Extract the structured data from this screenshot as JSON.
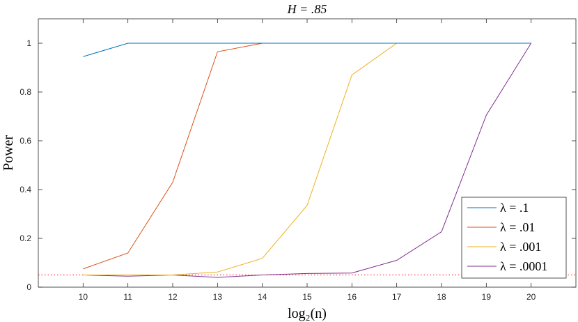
{
  "chart_data": {
    "type": "line",
    "title": "H = .85",
    "xlabel": "log₂(n)",
    "ylabel": "Power",
    "x": [
      10,
      11,
      12,
      13,
      14,
      15,
      16,
      17,
      18,
      19,
      20
    ],
    "xlim": [
      9,
      21
    ],
    "ylim": [
      0,
      1.1
    ],
    "xticks": [
      10,
      11,
      12,
      13,
      14,
      15,
      16,
      17,
      18,
      19,
      20
    ],
    "yticks": [
      0,
      0.2,
      0.4,
      0.6,
      0.8,
      1
    ],
    "ytick_labels": [
      "0",
      "0.2",
      "0.4",
      "0.6",
      "0.8",
      "1"
    ],
    "grid": false,
    "legend_position": "bottom-right",
    "reference_line": {
      "y": 0.05,
      "style": "dotted",
      "color": "#ff0000"
    },
    "series": [
      {
        "name": "λ = .1",
        "color": "#0072bd",
        "values": [
          0.945,
          1,
          1,
          1,
          1,
          1,
          1,
          1,
          1,
          1,
          1
        ]
      },
      {
        "name": "λ = .01",
        "color": "#d95319",
        "values": [
          0.075,
          0.14,
          0.43,
          0.965,
          1,
          1,
          1,
          1,
          1,
          1,
          1
        ]
      },
      {
        "name": "λ = .001",
        "color": "#edb120",
        "values": [
          0.05,
          0.05,
          0.05,
          0.062,
          0.118,
          0.335,
          0.87,
          1,
          1,
          1,
          1
        ]
      },
      {
        "name": "λ = .0001",
        "color": "#7e2f8e",
        "values": [
          0.05,
          0.045,
          0.05,
          0.04,
          0.05,
          0.056,
          0.058,
          0.11,
          0.227,
          0.705,
          1
        ]
      }
    ]
  }
}
